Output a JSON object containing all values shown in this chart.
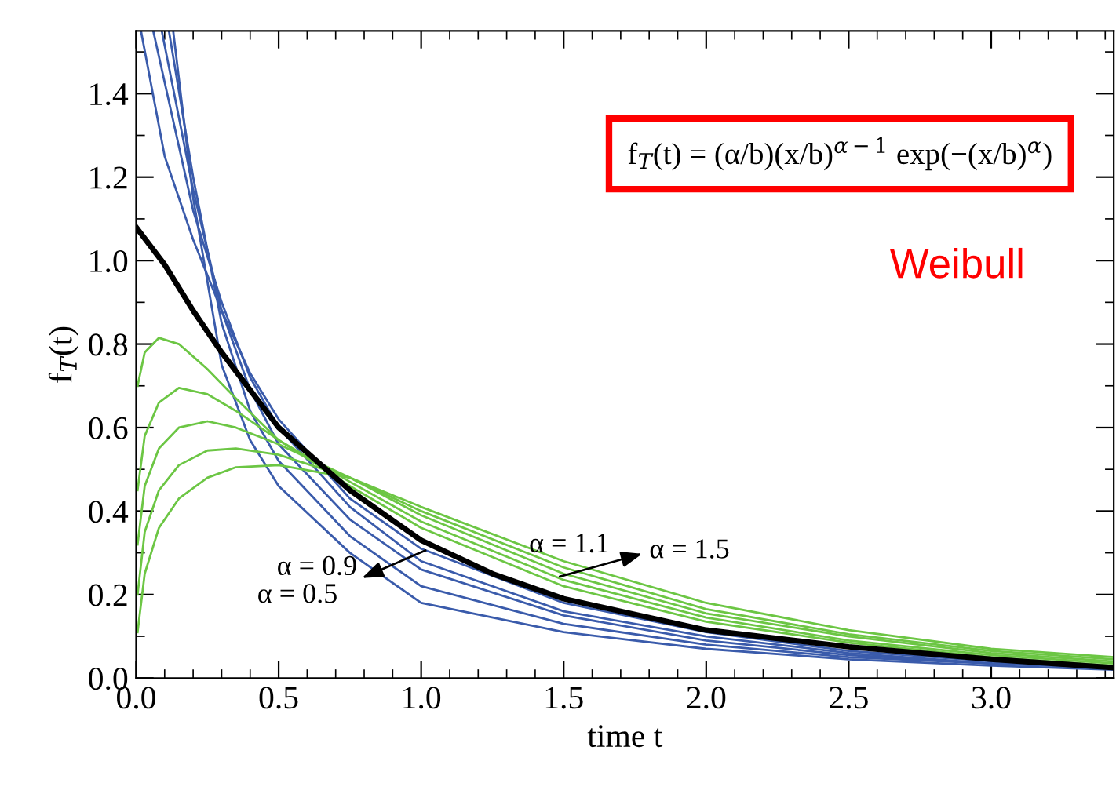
{
  "chart_data": {
    "type": "line",
    "xlabel": "time t",
    "ylabel": "f$_{T}$(t)",
    "xlim": [
      0,
      3.43
    ],
    "ylim": [
      0,
      1.55
    ],
    "xticks": [
      {
        "value": 0,
        "label": "0.0"
      },
      0.5,
      {
        "value": 1,
        "label": "1.0"
      },
      1.5,
      {
        "value": 2,
        "label": "2.0"
      },
      2.5,
      {
        "value": 3,
        "label": "3.0"
      }
    ],
    "yticks": [
      {
        "value": 0,
        "label": "0.0"
      },
      0.2,
      0.4,
      0.6,
      0.8,
      {
        "value": 1,
        "label": "1.0"
      },
      1.2,
      1.4
    ],
    "grid": false,
    "legend": false,
    "marker": "none",
    "line_style": "solid",
    "series": [
      {
        "color": "#3a5bab",
        "x": [
          0.13,
          0.2,
          0.3,
          0.4,
          0.5,
          0.75,
          1.0,
          1.5,
          2.0,
          2.5,
          3.0,
          3.43
        ],
        "values": [
          1.55,
          1.15,
          0.75,
          0.57,
          0.46,
          0.3,
          0.18,
          0.11,
          0.07,
          0.045,
          0.03,
          0.02
        ]
      },
      {
        "color": "#3a5bab",
        "x": [
          0.115,
          0.2,
          0.3,
          0.4,
          0.5,
          0.75,
          1.0,
          1.5,
          2.0,
          2.5,
          3.0,
          3.43
        ],
        "values": [
          1.55,
          1.2,
          0.85,
          0.64,
          0.52,
          0.34,
          0.22,
          0.13,
          0.08,
          0.05,
          0.035,
          0.025
        ]
      },
      {
        "color": "#3a5bab",
        "x": [
          0.09,
          0.2,
          0.3,
          0.4,
          0.5,
          0.75,
          1.0,
          1.5,
          2.0,
          2.5,
          3.0,
          3.43
        ],
        "values": [
          1.55,
          1.17,
          0.88,
          0.69,
          0.56,
          0.38,
          0.26,
          0.15,
          0.09,
          0.055,
          0.035,
          0.025
        ]
      },
      {
        "color": "#3a5bab",
        "x": [
          0.06,
          0.2,
          0.3,
          0.4,
          0.5,
          0.75,
          1.0,
          1.5,
          2.0,
          2.5,
          3.0,
          3.43
        ],
        "values": [
          1.55,
          1.12,
          0.9,
          0.72,
          0.6,
          0.41,
          0.28,
          0.16,
          0.1,
          0.06,
          0.035,
          0.025
        ]
      },
      {
        "color": "#3a5bab",
        "x": [
          0.017,
          0.1,
          0.2,
          0.3,
          0.4,
          0.5,
          0.75,
          1.0,
          1.5,
          2.0,
          2.5,
          3.0,
          3.43
        ],
        "values": [
          1.55,
          1.25,
          1.05,
          0.88,
          0.73,
          0.62,
          0.43,
          0.31,
          0.18,
          0.11,
          0.065,
          0.04,
          0.025
        ]
      },
      {
        "color": "#6cc644",
        "x": [
          0.005,
          0.03,
          0.08,
          0.15,
          0.25,
          0.35,
          0.5,
          0.75,
          1.0,
          1.5,
          2.0,
          2.5,
          3.0,
          3.43
        ],
        "values": [
          0.7,
          0.78,
          0.815,
          0.8,
          0.74,
          0.67,
          0.57,
          0.46,
          0.36,
          0.22,
          0.135,
          0.085,
          0.05,
          0.03
        ]
      },
      {
        "color": "#6cc644",
        "x": [
          0.005,
          0.03,
          0.08,
          0.15,
          0.25,
          0.35,
          0.5,
          0.75,
          1.0,
          1.5,
          2.0,
          2.5,
          3.0,
          3.43
        ],
        "values": [
          0.45,
          0.58,
          0.66,
          0.695,
          0.68,
          0.64,
          0.57,
          0.47,
          0.375,
          0.235,
          0.145,
          0.09,
          0.055,
          0.035
        ]
      },
      {
        "color": "#6cc644",
        "x": [
          0.005,
          0.03,
          0.08,
          0.15,
          0.25,
          0.35,
          0.5,
          0.75,
          1.0,
          1.5,
          2.0,
          2.5,
          3.0,
          3.43
        ],
        "values": [
          0.32,
          0.46,
          0.55,
          0.6,
          0.615,
          0.6,
          0.56,
          0.48,
          0.39,
          0.25,
          0.155,
          0.1,
          0.06,
          0.04
        ]
      },
      {
        "color": "#6cc644",
        "x": [
          0.005,
          0.03,
          0.08,
          0.15,
          0.25,
          0.35,
          0.5,
          0.75,
          1.0,
          1.5,
          2.0,
          2.5,
          3.0,
          3.43
        ],
        "values": [
          0.2,
          0.35,
          0.45,
          0.51,
          0.545,
          0.55,
          0.535,
          0.48,
          0.4,
          0.265,
          0.165,
          0.105,
          0.065,
          0.045
        ]
      },
      {
        "color": "#6cc644",
        "x": [
          0.005,
          0.03,
          0.08,
          0.15,
          0.25,
          0.35,
          0.5,
          0.75,
          1.0,
          1.5,
          2.0,
          2.5,
          3.0,
          3.43
        ],
        "values": [
          0.11,
          0.25,
          0.36,
          0.43,
          0.48,
          0.505,
          0.51,
          0.48,
          0.41,
          0.28,
          0.18,
          0.115,
          0.07,
          0.05
        ]
      },
      {
        "color": "#000000",
        "x": [
          0,
          0.1,
          0.2,
          0.3,
          0.4,
          0.5,
          0.75,
          1.0,
          1.25,
          1.5,
          2.0,
          2.5,
          3.0,
          3.43
        ],
        "values": [
          1.08,
          0.99,
          0.88,
          0.78,
          0.69,
          0.6,
          0.45,
          0.33,
          0.25,
          0.19,
          0.115,
          0.075,
          0.045,
          0.025
        ]
      }
    ],
    "annotations": [
      "α = 0.9",
      "α = 0.5",
      "α = 1.1",
      "α = 1.5",
      "f$_{T}$(t) = (α/b)(x/b)$^{α−1}$ exp(−(x/b)$^{α}$)",
      "Weibull"
    ]
  }
}
